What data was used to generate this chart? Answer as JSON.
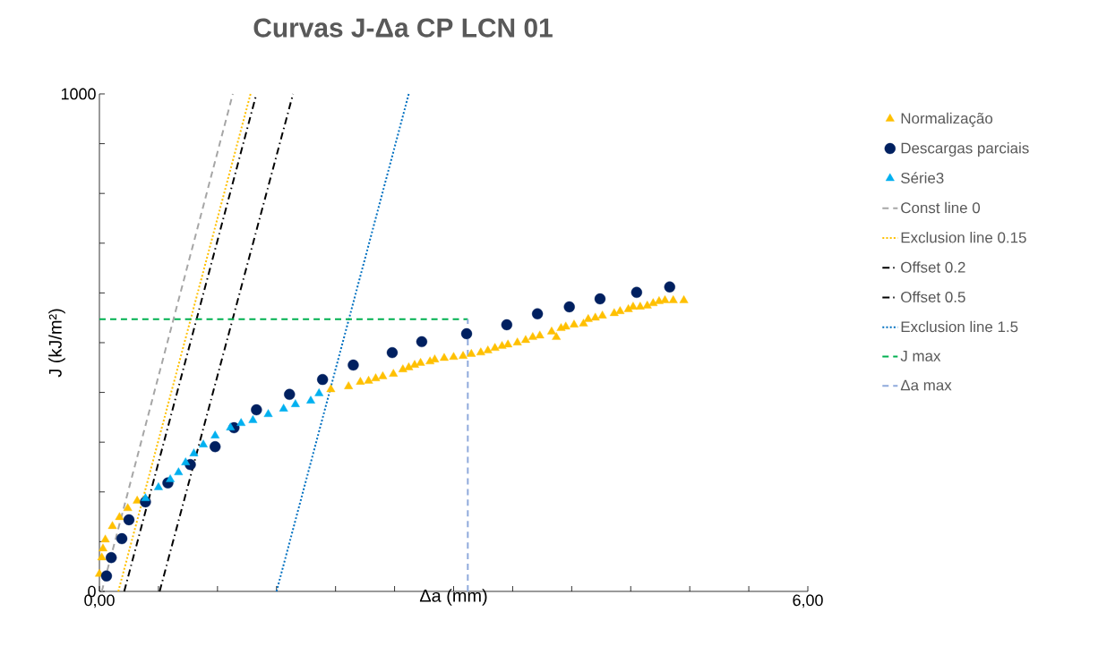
{
  "chart_data": {
    "type": "scatter",
    "title": "Curvas J-Δa CP LCN 01",
    "xlabel": "Δa (mm)",
    "ylabel": "J (kJ/m²)",
    "xlim": [
      0,
      6
    ],
    "ylim": [
      0,
      1000
    ],
    "xticks": [
      {
        "value": 0,
        "label": "0,00"
      },
      {
        "value": 0.5,
        "label": null
      },
      {
        "value": 1,
        "label": null
      },
      {
        "value": 1.5,
        "label": null
      },
      {
        "value": 2,
        "label": null
      },
      {
        "value": 2.5,
        "label": null
      },
      {
        "value": 3,
        "label": null
      },
      {
        "value": 3.5,
        "label": null
      },
      {
        "value": 4,
        "label": null
      },
      {
        "value": 4.5,
        "label": null
      },
      {
        "value": 5,
        "label": null
      },
      {
        "value": 5.5,
        "label": null
      },
      {
        "value": 6,
        "label": "6,00"
      }
    ],
    "yticks": [
      0,
      {
        "value": 100,
        "label": null
      },
      {
        "value": 200,
        "label": null
      },
      {
        "value": 300,
        "label": null
      },
      {
        "value": 400,
        "label": null
      },
      {
        "value": 500,
        "label": null
      },
      {
        "value": 600,
        "label": null
      },
      {
        "value": 700,
        "label": null
      },
      {
        "value": 800,
        "label": null
      },
      {
        "value": 900,
        "label": null
      },
      1000
    ],
    "legend": "right",
    "grid": false,
    "series": [
      {
        "name": "Normalização",
        "marker": "triangle",
        "color": "#ffc000",
        "x": [
          0.0,
          0.02,
          0.03,
          0.05,
          0.11,
          0.17,
          0.24,
          0.32,
          1.96,
          2.11,
          2.21,
          2.28,
          2.34,
          2.4,
          2.49,
          2.57,
          2.62,
          2.67,
          2.72,
          2.8,
          2.84,
          2.92,
          3.0,
          3.08,
          3.15,
          3.23,
          3.29,
          3.35,
          3.41,
          3.46,
          3.54,
          3.61,
          3.67,
          3.73,
          3.83,
          3.87,
          3.91,
          3.95,
          4.02,
          4.1,
          4.14,
          4.2,
          4.26,
          4.36,
          4.41,
          4.48,
          4.52,
          4.58,
          4.64,
          4.69,
          4.74,
          4.79,
          4.86,
          4.95
        ],
        "values": [
          35,
          68,
          86,
          104,
          131,
          149,
          167,
          182,
          406,
          412,
          421,
          423,
          428,
          432,
          437,
          446,
          450,
          455,
          459,
          462,
          466,
          469,
          471,
          473,
          477,
          480,
          484,
          489,
          493,
          496,
          500,
          505,
          511,
          514,
          522,
          511,
          529,
          532,
          536,
          538,
          547,
          550,
          554,
          559,
          563,
          567,
          572,
          572,
          574,
          579,
          583,
          585,
          585,
          585
        ]
      },
      {
        "name": "Descargas parciais",
        "marker": "circle",
        "color": "#002060",
        "x": [
          0.06,
          0.1,
          0.19,
          0.25,
          0.39,
          0.58,
          0.77,
          0.98,
          1.14,
          1.33,
          1.61,
          1.89,
          2.15,
          2.48,
          2.73,
          3.11,
          3.45,
          3.71,
          3.98,
          4.24,
          4.55,
          4.83
        ],
        "values": [
          31,
          68,
          106,
          144,
          180,
          218,
          255,
          291,
          329,
          365,
          396,
          426,
          455,
          480,
          502,
          518,
          536,
          558,
          572,
          588,
          601,
          612
        ]
      },
      {
        "name": "Série3",
        "marker": "triangle",
        "color": "#00b0f0",
        "x": [
          0.39,
          0.5,
          0.6,
          0.67,
          0.73,
          0.8,
          0.88,
          0.98,
          1.11,
          1.2,
          1.3,
          1.43,
          1.56,
          1.66,
          1.79,
          1.86
        ],
        "values": [
          187,
          209,
          225,
          239,
          259,
          277,
          295,
          313,
          329,
          338,
          344,
          356,
          367,
          376,
          383,
          398
        ]
      },
      {
        "name": "Const line 0",
        "type": "line",
        "line_style": "dashed",
        "color": "#a6a6a6",
        "x": [
          0.02,
          1.13
        ],
        "values": [
          0,
          1000
        ]
      },
      {
        "name": "Exclusion line 0.15",
        "type": "line",
        "line_style": "dotted",
        "color": "#ffc000",
        "x": [
          0.16,
          1.28
        ],
        "values": [
          0,
          1000
        ]
      },
      {
        "name": "Offset 0.2",
        "type": "line",
        "line_style": "dashdot",
        "color": "#000000",
        "x": [
          0.21,
          1.33
        ],
        "values": [
          0,
          1000
        ]
      },
      {
        "name": "Offset 0.5",
        "type": "line",
        "line_style": "dashdot",
        "color": "#000000",
        "x": [
          0.51,
          1.64
        ],
        "values": [
          0,
          1000
        ]
      },
      {
        "name": "Exclusion line 1.5",
        "type": "line",
        "line_style": "dotted",
        "color": "#0070c0",
        "x": [
          1.5,
          2.62
        ],
        "values": [
          0,
          1000
        ]
      },
      {
        "name": "J max",
        "type": "line",
        "line_style": "dashed",
        "color": "#00b050",
        "x": [
          0,
          3.12
        ],
        "values": [
          547,
          547
        ]
      },
      {
        "name": "Δa max",
        "type": "line",
        "line_style": "dashed",
        "color": "#8faadc",
        "x": [
          3.12,
          3.12
        ],
        "values": [
          0,
          547
        ]
      }
    ]
  }
}
